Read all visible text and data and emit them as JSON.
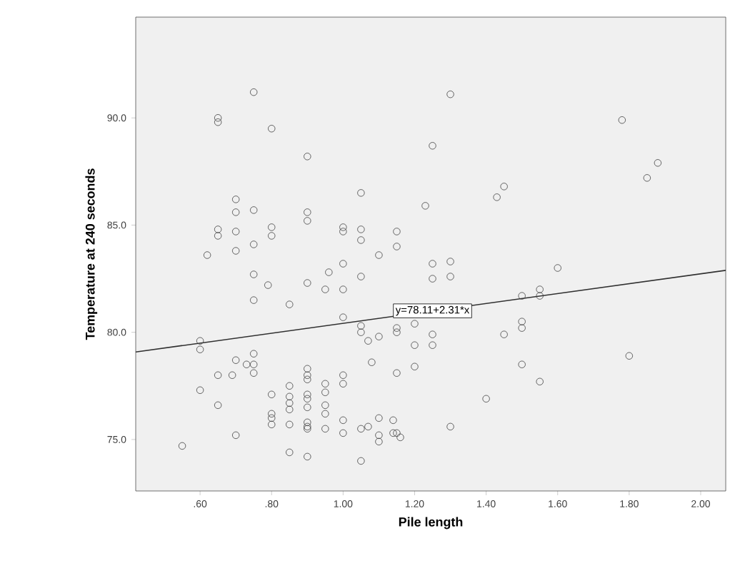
{
  "chart_data": {
    "type": "scatter",
    "xlabel": "Pile length",
    "ylabel": "Temperature at 240 seconds",
    "xlim": [
      0.42,
      2.07
    ],
    "ylim": [
      72.6,
      94.7
    ],
    "xticks": [
      {
        "value": 0.6,
        "label": ".60"
      },
      {
        "value": 0.8,
        "label": ".80"
      },
      {
        "value": 1.0,
        "label": "1.00"
      },
      {
        "value": 1.2,
        "label": "1.20"
      },
      {
        "value": 1.4,
        "label": "1.40"
      },
      {
        "value": 1.6,
        "label": "1.60"
      },
      {
        "value": 1.8,
        "label": "1.80"
      },
      {
        "value": 2.0,
        "label": "2.00"
      }
    ],
    "yticks": [
      {
        "value": 75,
        "label": "75.0"
      },
      {
        "value": 80,
        "label": "80.0"
      },
      {
        "value": 85,
        "label": "85.0"
      },
      {
        "value": 90,
        "label": "90.0"
      }
    ],
    "annotations": [
      {
        "text": "y=78.11+2.31*x",
        "x": 1.25,
        "y": 81.0
      }
    ],
    "series": [
      {
        "marker": "circle",
        "color": "#404040",
        "x": [
          0.65,
          0.65,
          0.75,
          0.8,
          0.9,
          0.9,
          0.9,
          1.0,
          1.0,
          1.05,
          1.05,
          1.05,
          1.1,
          1.15,
          1.15,
          0.75,
          0.75,
          0.7,
          0.7,
          0.7,
          0.7,
          0.65,
          0.65,
          0.62,
          0.8,
          0.8,
          0.75,
          0.79,
          0.9,
          0.96,
          1.0,
          1.05,
          0.95,
          1.0,
          0.75,
          0.85,
          1.0,
          1.05,
          1.05,
          1.07,
          1.1,
          1.15,
          1.15,
          1.2,
          1.2,
          1.25,
          1.25,
          1.45,
          1.5,
          1.5,
          1.08,
          1.15,
          1.2,
          1.5,
          1.55,
          1.4,
          1.8,
          0.6,
          0.6,
          0.6,
          0.55,
          0.65,
          0.65,
          0.69,
          0.7,
          0.73,
          0.75,
          0.75,
          0.75,
          0.7,
          0.8,
          0.8,
          0.8,
          0.8,
          0.85,
          0.85,
          0.85,
          0.85,
          0.85,
          0.85,
          0.9,
          0.9,
          0.9,
          0.9,
          0.9,
          0.9,
          0.9,
          0.9,
          0.9,
          0.9,
          0.95,
          0.95,
          0.95,
          0.95,
          0.95,
          1.0,
          1.0,
          1.0,
          1.0,
          1.05,
          1.07,
          1.05,
          1.1,
          1.1,
          1.1,
          1.14,
          1.14,
          1.15,
          1.16,
          1.3,
          1.25,
          1.3,
          1.25,
          1.3,
          1.5,
          1.55,
          1.55,
          1.6,
          1.3,
          1.25,
          1.78,
          1.88,
          1.85,
          1.43,
          1.45,
          1.23
        ],
        "values": [
          90.0,
          89.8,
          91.2,
          89.5,
          88.2,
          85.6,
          85.2,
          84.9,
          84.7,
          86.5,
          84.8,
          84.3,
          83.6,
          84.7,
          84.0,
          85.7,
          84.1,
          86.2,
          85.6,
          84.7,
          83.8,
          84.8,
          84.5,
          83.6,
          84.9,
          84.5,
          82.7,
          82.2,
          82.3,
          82.8,
          83.2,
          82.6,
          82.0,
          82.0,
          81.5,
          81.3,
          80.7,
          80.3,
          80.0,
          79.6,
          79.8,
          80.2,
          80.0,
          80.4,
          79.4,
          79.9,
          79.4,
          79.9,
          80.5,
          80.2,
          78.6,
          78.1,
          78.4,
          78.5,
          77.7,
          76.9,
          78.9,
          79.6,
          79.2,
          77.3,
          74.7,
          78.0,
          76.6,
          78.0,
          78.7,
          78.5,
          79.0,
          78.5,
          78.1,
          75.2,
          77.1,
          76.2,
          76.0,
          75.7,
          77.5,
          77.0,
          76.7,
          76.4,
          75.7,
          74.4,
          78.3,
          78.0,
          77.8,
          77.1,
          76.9,
          76.5,
          75.8,
          75.6,
          75.5,
          74.2,
          77.6,
          77.2,
          76.6,
          76.2,
          75.5,
          78.0,
          77.6,
          75.9,
          75.3,
          75.5,
          75.6,
          74.0,
          76.0,
          75.2,
          74.9,
          75.9,
          75.3,
          75.3,
          75.1,
          75.6,
          82.5,
          82.6,
          83.2,
          83.3,
          81.7,
          82.0,
          81.7,
          83.0,
          91.1,
          88.7,
          89.9,
          87.9,
          87.2,
          86.3,
          86.8,
          85.9
        ]
      },
      {
        "type": "line",
        "marker": "none",
        "color": "#303030",
        "x": [
          0.42,
          2.07
        ],
        "values": [
          79.08,
          82.89
        ]
      }
    ]
  }
}
